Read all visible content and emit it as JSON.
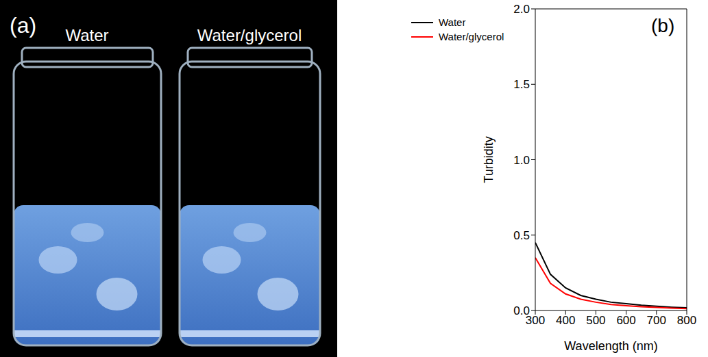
{
  "panel_a": {
    "letter": "(a)",
    "labels": [
      "Water",
      "Water/glycerol"
    ]
  },
  "chart_data": {
    "type": "line",
    "panel_label": "(b)",
    "x_label": "Wavelength (nm)",
    "y_label": "Turbidity",
    "x": [
      300,
      350,
      400,
      450,
      500,
      550,
      600,
      650,
      700,
      750,
      800
    ],
    "series": [
      {
        "name": "Water",
        "color": "#000000",
        "values": [
          0.45,
          0.24,
          0.15,
          0.1,
          0.075,
          0.055,
          0.045,
          0.035,
          0.028,
          0.022,
          0.018
        ]
      },
      {
        "name": "Water/glycerol",
        "color": "#ff0000",
        "values": [
          0.35,
          0.18,
          0.11,
          0.075,
          0.055,
          0.04,
          0.032,
          0.025,
          0.02,
          0.016,
          0.012
        ]
      }
    ],
    "xlim": [
      300,
      800
    ],
    "xticks": [
      300,
      400,
      500,
      600,
      700,
      800
    ],
    "ylim": [
      0,
      2
    ],
    "yticks": [
      {
        "value": 0,
        "label": "0.0"
      },
      0.5,
      {
        "value": 1,
        "label": "1.0"
      },
      1.5,
      {
        "value": 2,
        "label": "2.0"
      }
    ],
    "legend": "upper left",
    "grid": false
  }
}
